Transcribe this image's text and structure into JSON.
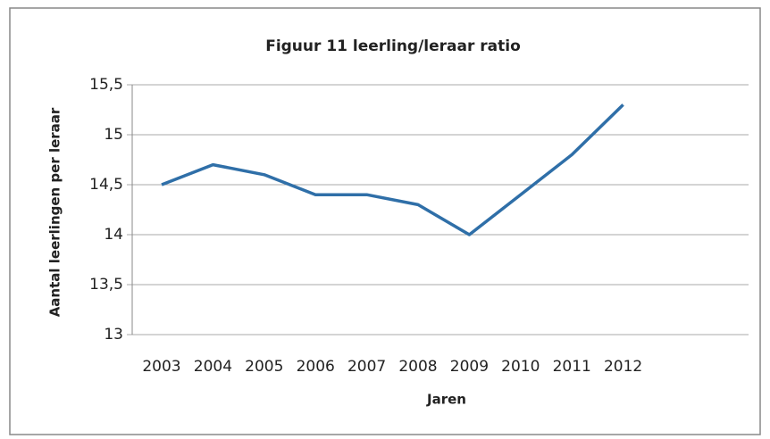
{
  "chart_data": {
    "type": "line",
    "title": "Figuur 11 leerling/leraar ratio",
    "x_label": "Jaren",
    "y_label": "Aantal leerlingen per leraar",
    "categories": [
      "2003",
      "2004",
      "2005",
      "2006",
      "2007",
      "2008",
      "2009",
      "2010",
      "2011",
      "2012"
    ],
    "series": [
      {
        "name": "ratio",
        "color": "#2f6fa8",
        "values": [
          14.5,
          14.7,
          14.6,
          14.4,
          14.4,
          14.3,
          14.0,
          14.4,
          14.8,
          15.3
        ]
      }
    ],
    "ylim": [
      13,
      15.5
    ],
    "yticks": [
      13,
      {
        "value": 13.5,
        "label": "13,5"
      },
      14,
      {
        "value": 14.5,
        "label": "14,5"
      },
      15,
      {
        "value": 15.5,
        "label": "15,5"
      }
    ],
    "grid": true
  }
}
